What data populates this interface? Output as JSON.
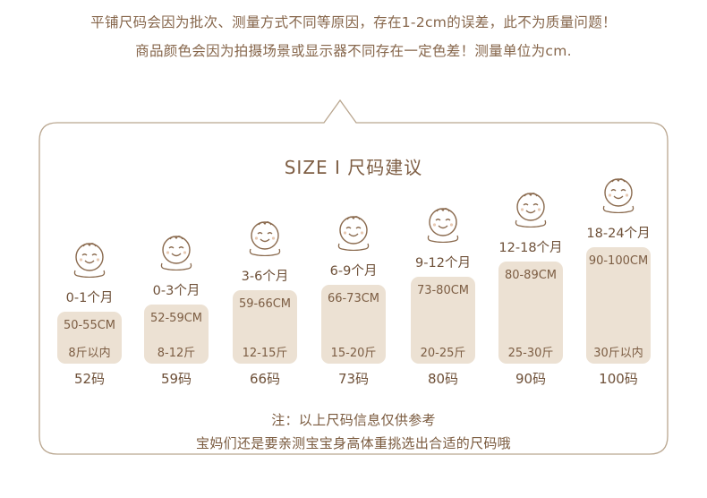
{
  "notes": {
    "line1": "平铺尺码会因为批次、测量方式不同等原因，存在1-2cm的误差，此不为质量问题！",
    "line2": "商品颜色会因为拍摄场景或显示器不同存在一定色差！测量单位为cm."
  },
  "title": "SIZE  I  尺码建议",
  "sizes": [
    {
      "age": "0-1个月",
      "height": "50-55CM",
      "weight": "8斤以内",
      "code": "52码"
    },
    {
      "age": "0-3个月",
      "height": "52-59CM",
      "weight": "8-12斤",
      "code": "59码"
    },
    {
      "age": "3-6个月",
      "height": "59-66CM",
      "weight": "12-15斤",
      "code": "66码"
    },
    {
      "age": "6-9个月",
      "height": "66-73CM",
      "weight": "15-20斤",
      "code": "73码"
    },
    {
      "age": "9-12个月",
      "height": "73-80CM",
      "weight": "20-25斤",
      "code": "80码"
    },
    {
      "age": "12-18个月",
      "height": "80-89CM",
      "weight": "25-30斤",
      "code": "90码"
    },
    {
      "age": "18-24个月",
      "height": "90-100CM",
      "weight": "30斤以内",
      "code": "100码"
    }
  ],
  "footer": {
    "line1": "注：以上尺码信息仅供参考",
    "line2": "宝妈们还是要亲测宝宝身高体重挑选出合适的尺码哦"
  },
  "colors": {
    "frame": "#b9a68f",
    "card": "#ece1d3",
    "text": "#7a5a3e"
  },
  "icons": {
    "face": "baby-face-icon"
  }
}
